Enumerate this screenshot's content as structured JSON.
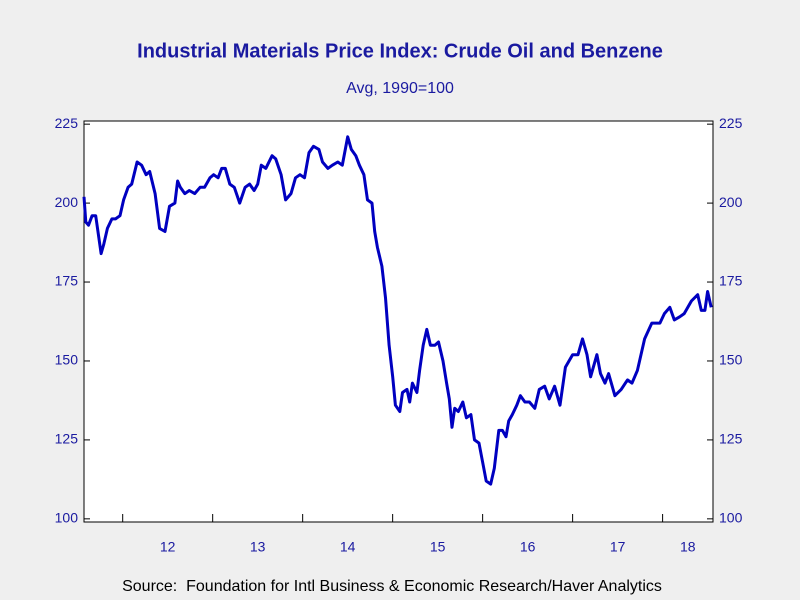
{
  "chart_data": {
    "type": "line",
    "title": "Industrial Materials Price Index: Crude Oil and Benzene",
    "subtitle": "Avg, 1990=100",
    "source": "Source:  Foundation for Intl Business & Economic Research/Haver Analytics",
    "x": [
      2011.57,
      2011.59,
      2011.62,
      2011.66,
      2011.7,
      2011.76,
      2011.79,
      2011.83,
      2011.88,
      2011.92,
      2011.97,
      2012.01,
      2012.06,
      2012.1,
      2012.16,
      2012.21,
      2012.26,
      2012.3,
      2012.36,
      2012.41,
      2012.47,
      2012.52,
      2012.58,
      2012.61,
      2012.64,
      2012.69,
      2012.74,
      2012.8,
      2012.86,
      2012.91,
      2012.97,
      2013.01,
      2013.06,
      2013.1,
      2013.14,
      2013.19,
      2013.24,
      2013.3,
      2013.36,
      2013.41,
      2013.46,
      2013.5,
      2013.54,
      2013.59,
      2013.66,
      2013.7,
      2013.76,
      2013.81,
      2013.87,
      2013.92,
      2013.97,
      2014.02,
      2014.07,
      2014.12,
      2014.18,
      2014.22,
      2014.28,
      2014.33,
      2014.39,
      2014.44,
      2014.5,
      2014.54,
      2014.59,
      2014.63,
      2014.68,
      2014.72,
      2014.77,
      2014.8,
      2014.83,
      2014.88,
      2014.92,
      2014.96,
      2015.0,
      2015.03,
      2015.08,
      2015.11,
      2015.16,
      2015.19,
      2015.22,
      2015.27,
      2015.3,
      2015.34,
      2015.38,
      2015.42,
      2015.47,
      2015.51,
      2015.56,
      2015.6,
      2015.63,
      2015.66,
      2015.69,
      2015.73,
      2015.78,
      2015.82,
      2015.87,
      2015.91,
      2015.96,
      2016.0,
      2016.04,
      2016.09,
      2016.13,
      2016.18,
      2016.22,
      2016.26,
      2016.29,
      2016.33,
      2016.38,
      2016.42,
      2016.47,
      2016.52,
      2016.58,
      2016.63,
      2016.69,
      2016.74,
      2016.8,
      2016.86,
      2016.92,
      2017.0,
      2017.06,
      2017.11,
      2017.16,
      2017.2,
      2017.27,
      2017.31,
      2017.36,
      2017.4,
      2017.47,
      2017.54,
      2017.61,
      2017.66,
      2017.72,
      2017.8,
      2017.88,
      2017.97,
      2018.02,
      2018.08,
      2018.13,
      2018.19,
      2018.24,
      2018.32,
      2018.39,
      2018.43,
      2018.47,
      2018.5,
      2018.54
    ],
    "series": [
      {
        "color": "#0000c0",
        "values": [
          202,
          194,
          193,
          196,
          196,
          184,
          187,
          192,
          195,
          195,
          196,
          201,
          205,
          206,
          213,
          212,
          209,
          210,
          203,
          192,
          191,
          199,
          200,
          207,
          205,
          203,
          204,
          203,
          205,
          205,
          208,
          209,
          208,
          211,
          211,
          206,
          205,
          200,
          205,
          206,
          204,
          206,
          212,
          211,
          215,
          214,
          209,
          201,
          203,
          208,
          209,
          208,
          216,
          218,
          217,
          213,
          211,
          212,
          213,
          212,
          221,
          217,
          215,
          212,
          209,
          201,
          200,
          191,
          186,
          180,
          170,
          155,
          145,
          136,
          134,
          140,
          141,
          137,
          143,
          140,
          147,
          155,
          160,
          155,
          155,
          156,
          150,
          143,
          138,
          129,
          135,
          134,
          137,
          132,
          133,
          125,
          124,
          118,
          112,
          111,
          116,
          128,
          128,
          126,
          131,
          133,
          136,
          139,
          137,
          137,
          135,
          141,
          142,
          138,
          142,
          136,
          148,
          152,
          152,
          157,
          152,
          145,
          152,
          146,
          143,
          146,
          139,
          141,
          144,
          143,
          147,
          157,
          162,
          162,
          165,
          167,
          163,
          164,
          165,
          169,
          171,
          166,
          166,
          172,
          167
        ]
      }
    ],
    "xlim": [
      2011.57,
      2018.56
    ],
    "xticks": [
      {
        "value": 2012,
        "label": "12"
      },
      {
        "value": 2013,
        "label": "13"
      },
      {
        "value": 2014,
        "label": "14"
      },
      {
        "value": 2015,
        "label": "15"
      },
      {
        "value": 2016,
        "label": "16"
      },
      {
        "value": 2017,
        "label": "17"
      },
      {
        "value": 2018,
        "label": "18"
      }
    ],
    "ylim": [
      99,
      226
    ],
    "yticks": [
      100,
      125,
      150,
      175,
      200,
      225
    ],
    "y2lim": [
      99,
      226
    ],
    "y2ticks": [
      100,
      125,
      150,
      175,
      200,
      225
    ]
  }
}
